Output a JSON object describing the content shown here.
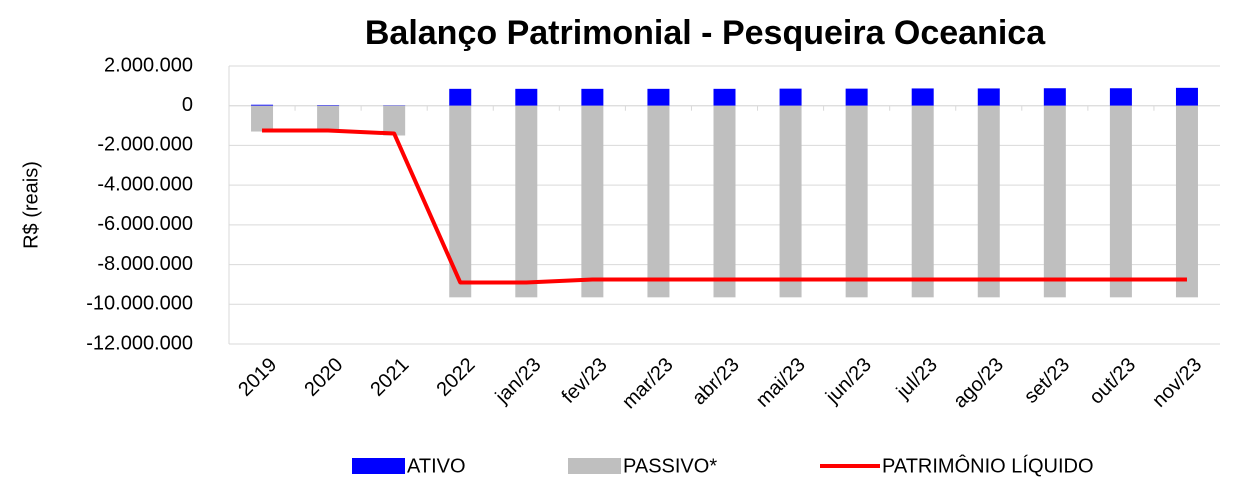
{
  "chart_data": {
    "type": "bar_line",
    "title": "Balanço Patrimonial - Pesqueira Oceanica",
    "y_label": "R$ (reais)",
    "categories": [
      "2019",
      "2020",
      "2021",
      "2022",
      "jan/23",
      "fev/23",
      "mar/23",
      "abr/23",
      "mai/23",
      "jun/23",
      "jul/23",
      "ago/23",
      "set/23",
      "out/23",
      "nov/23"
    ],
    "series": [
      {
        "name": "ATIVO",
        "type": "bar",
        "color": "#0000ff",
        "values": [
          50000,
          30000,
          20000,
          850000,
          850000,
          850000,
          850000,
          850000,
          860000,
          860000,
          870000,
          870000,
          880000,
          880000,
          900000
        ]
      },
      {
        "name": "PASSIVO*",
        "type": "bar",
        "color": "#bfbfbf",
        "values": [
          -1300000,
          -1300000,
          -1500000,
          -9650000,
          -9650000,
          -9650000,
          -9650000,
          -9650000,
          -9650000,
          -9650000,
          -9650000,
          -9650000,
          -9650000,
          -9650000,
          -9650000
        ]
      },
      {
        "name": "PATRIMÔNIO LÍQUIDO",
        "type": "line",
        "color": "#ff0000",
        "values": [
          -1250000,
          -1250000,
          -1400000,
          -8900000,
          -8900000,
          -8750000,
          -8750000,
          -8750000,
          -8750000,
          -8750000,
          -8750000,
          -8750000,
          -8750000,
          -8750000,
          -8750000
        ]
      }
    ],
    "ylim": [
      -12000000,
      2000000
    ],
    "yticks": [
      {
        "value": -12000000,
        "label": "-12.000.000"
      },
      {
        "value": -10000000,
        "label": "-10.000.000"
      },
      {
        "value": -8000000,
        "label": "-8.000.000"
      },
      {
        "value": -6000000,
        "label": "-6.000.000"
      },
      {
        "value": -4000000,
        "label": "-4.000.000"
      },
      {
        "value": -2000000,
        "label": "-2.000.000"
      },
      0,
      {
        "value": 2000000,
        "label": "2.000.000"
      }
    ],
    "negative_tick_color": "#ff0000",
    "grid": true,
    "legend": "bottom"
  }
}
